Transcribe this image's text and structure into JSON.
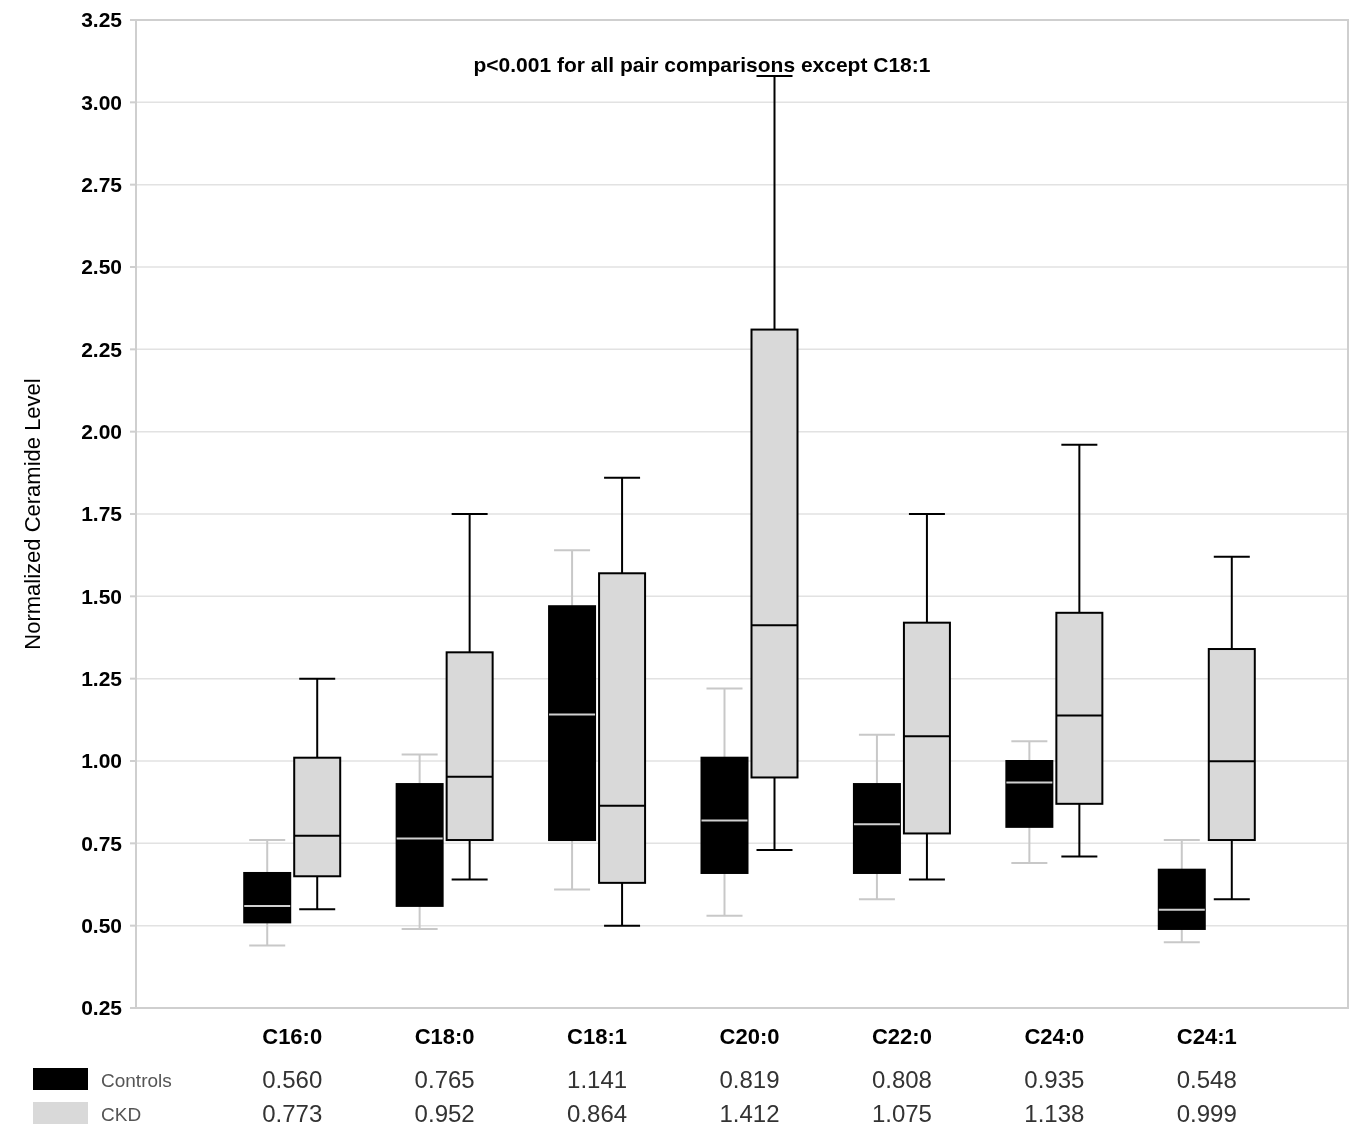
{
  "chart_data": {
    "type": "box",
    "ylabel": "Normalized Ceramide Level",
    "annotations": [
      "p<0.001 for all pair comparisons except C18:1"
    ],
    "categories": [
      "C16:0",
      "C18:0",
      "C18:1",
      "C20:0",
      "C22:0",
      "C24:0",
      "C24:1"
    ],
    "ylim": [
      0.25,
      3.25
    ],
    "yticks": [
      {
        "value": 0.25,
        "label": "0.25"
      },
      {
        "value": 0.5,
        "label": "0.50"
      },
      {
        "value": 0.75,
        "label": "0.75"
      },
      {
        "value": 1,
        "label": "1.00"
      },
      {
        "value": 1.25,
        "label": "1.25"
      },
      {
        "value": 1.5,
        "label": "1.50"
      },
      {
        "value": 1.75,
        "label": "1.75"
      },
      {
        "value": 2,
        "label": "2.00"
      },
      {
        "value": 2.25,
        "label": "2.25"
      },
      {
        "value": 2.5,
        "label": "2.50"
      },
      {
        "value": 2.75,
        "label": "2.75"
      },
      {
        "value": 3,
        "label": "3.00"
      },
      {
        "value": 3.25,
        "label": "3.25"
      }
    ],
    "grid": "y",
    "legend": "bottom left",
    "series": [
      {
        "name": "Controls",
        "color": "#000000",
        "value_labels": [
          "0.560",
          "0.765",
          "1.141",
          "0.819",
          "0.808",
          "0.935",
          "0.548"
        ],
        "boxes": [
          {
            "low": 0.44,
            "q1": 0.51,
            "median": 0.56,
            "q3": 0.66,
            "high": 0.76
          },
          {
            "low": 0.49,
            "q1": 0.56,
            "median": 0.765,
            "q3": 0.93,
            "high": 1.02
          },
          {
            "low": 0.61,
            "q1": 0.76,
            "median": 1.141,
            "q3": 1.47,
            "high": 1.64
          },
          {
            "low": 0.53,
            "q1": 0.66,
            "median": 0.819,
            "q3": 1.01,
            "high": 1.22
          },
          {
            "low": 0.58,
            "q1": 0.66,
            "median": 0.808,
            "q3": 0.93,
            "high": 1.08
          },
          {
            "low": 0.69,
            "q1": 0.8,
            "median": 0.935,
            "q3": 1.0,
            "high": 1.06
          },
          {
            "low": 0.45,
            "q1": 0.49,
            "median": 0.548,
            "q3": 0.67,
            "high": 0.76
          }
        ]
      },
      {
        "name": "CKD",
        "color": "#d9d9d9",
        "value_labels": [
          "0.773",
          "0.952",
          "0.864",
          "1.412",
          "1.075",
          "1.138",
          "0.999"
        ],
        "boxes": [
          {
            "low": 0.55,
            "q1": 0.65,
            "median": 0.773,
            "q3": 1.01,
            "high": 1.25
          },
          {
            "low": 0.64,
            "q1": 0.76,
            "median": 0.952,
            "q3": 1.33,
            "high": 1.75
          },
          {
            "low": 0.5,
            "q1": 0.63,
            "median": 0.864,
            "q3": 1.57,
            "high": 1.86
          },
          {
            "low": 0.73,
            "q1": 0.95,
            "median": 1.412,
            "q3": 2.31,
            "high": 3.08
          },
          {
            "low": 0.64,
            "q1": 0.78,
            "median": 1.075,
            "q3": 1.42,
            "high": 1.75
          },
          {
            "low": 0.71,
            "q1": 0.87,
            "median": 1.138,
            "q3": 1.45,
            "high": 1.96
          },
          {
            "low": 0.58,
            "q1": 0.76,
            "median": 0.999,
            "q3": 1.34,
            "high": 1.62
          }
        ]
      }
    ]
  }
}
